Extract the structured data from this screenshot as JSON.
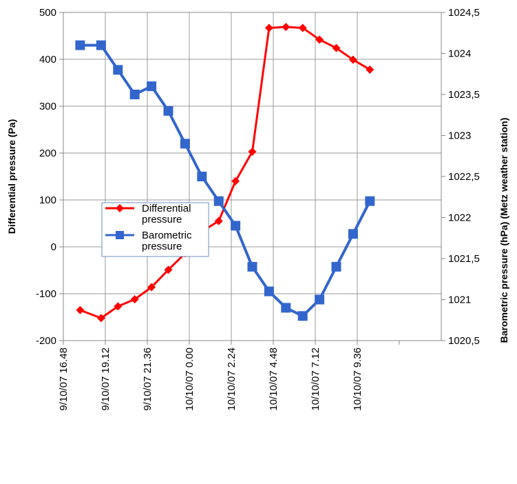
{
  "chart_data": {
    "type": "line",
    "title": "",
    "xlabel": "",
    "ylabel": "Differential pressure (Pa)",
    "y2label": "Barometric pressure (hPa) (Metz weather station)",
    "xlim": [
      0,
      9
    ],
    "ylim": [
      -200,
      500
    ],
    "y2lim": [
      1020.5,
      1024.5
    ],
    "grid": true,
    "legend_position": "center-left",
    "xticks": [
      "9/10/07 16.48",
      "9/10/07 19.12",
      "9/10/07 21.36",
      "10/10/07 0.00",
      "10/10/07 2.24",
      "10/10/07 4.48",
      "10/10/07 7.12",
      "10/10/07 9.36"
    ],
    "yticks": [
      "500",
      "400",
      "300",
      "200",
      "100",
      "0",
      "-100",
      "-200"
    ],
    "y2ticks": [
      "1024,5",
      "1024",
      "1023,5",
      "1023",
      "1022,5",
      "1022",
      "1021,5",
      "1021",
      "1020,5"
    ],
    "x": [
      0.4,
      0.9,
      1.3,
      1.7,
      2.1,
      2.5,
      2.9,
      3.3,
      3.7,
      4.1,
      4.5,
      5.1,
      5.5,
      5.9,
      6.3,
      6.7,
      7.1,
      7.5
    ],
    "series": [
      {
        "name": "Differential pressure",
        "axis": "left",
        "color": "#ff0000",
        "marker": "diamond",
        "x": [
          0.4,
          0.9,
          1.3,
          1.7,
          2.1,
          2.5,
          2.9,
          3.3,
          3.7,
          4.1,
          4.5,
          4.9,
          5.3,
          5.7,
          6.1,
          6.5,
          6.9,
          7.3
        ],
        "values": [
          -135,
          -152,
          -127,
          -112,
          -86,
          -49,
          -14,
          33,
          55,
          140,
          203,
          467,
          469,
          467,
          442,
          424,
          399,
          378
        ]
      },
      {
        "name": "Barometric pressure",
        "axis": "right",
        "color": "#3366cc",
        "marker": "square",
        "x": [
          0.4,
          0.9,
          1.3,
          1.7,
          2.1,
          2.5,
          2.9,
          3.3,
          3.7,
          4.1,
          4.5,
          4.9,
          5.3,
          5.7,
          6.1,
          6.5,
          6.9,
          7.3
        ],
        "values": [
          1024.1,
          1024.1,
          1023.8,
          1023.5,
          1023.6,
          1023.3,
          1022.9,
          1022.5,
          1022.2,
          1021.9,
          1021.4,
          1021.1,
          1020.9,
          1020.8,
          1021.0,
          1021.4,
          1021.8,
          1022.2
        ]
      }
    ],
    "legend": [
      "Differential pressure",
      "Barometric pressure"
    ]
  }
}
